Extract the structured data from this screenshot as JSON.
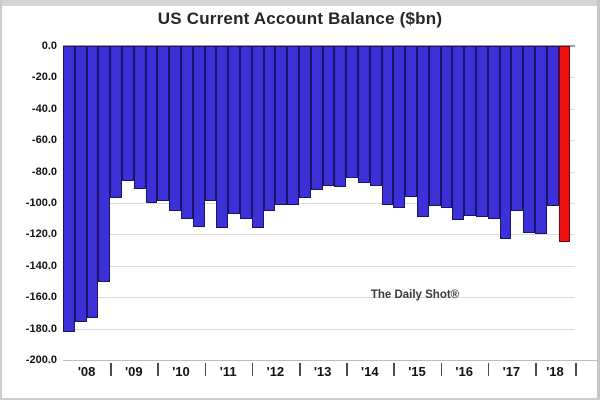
{
  "page": {
    "title": "US Current Account Balance ($bn)",
    "source_note": "The Daily Shot®"
  },
  "chart_data": {
    "type": "bar",
    "title": "US Current Account Balance ($bn)",
    "ylabel": "",
    "xlabel": "",
    "unit": "$bn",
    "ylim": [
      -200,
      0
    ],
    "grid": true,
    "legend": false,
    "yticks": [
      0,
      -20,
      -40,
      -60,
      -80,
      -100,
      -120,
      -140,
      -160,
      -180,
      -200
    ],
    "ytick_labels": [
      "0.0",
      "-20.0",
      "-40.0",
      "-60.0",
      "-80.0",
      "-100.0",
      "-120.0",
      "-140.0",
      "-160.0",
      "-180.0",
      "-200.0"
    ],
    "x_labels": [
      "'08",
      "'09",
      "'10",
      "'11",
      "'12",
      "'13",
      "'14",
      "'15",
      "'16",
      "'17",
      "'18"
    ],
    "bars_per_year": [
      4,
      4,
      4,
      4,
      4,
      4,
      4,
      4,
      4,
      4,
      3
    ],
    "categories": [
      "2008 Q1",
      "2008 Q2",
      "2008 Q3",
      "2008 Q4",
      "2009 Q1",
      "2009 Q2",
      "2009 Q3",
      "2009 Q4",
      "2010 Q1",
      "2010 Q2",
      "2010 Q3",
      "2010 Q4",
      "2011 Q1",
      "2011 Q2",
      "2011 Q3",
      "2011 Q4",
      "2012 Q1",
      "2012 Q2",
      "2012 Q3",
      "2012 Q4",
      "2013 Q1",
      "2013 Q2",
      "2013 Q3",
      "2013 Q4",
      "2014 Q1",
      "2014 Q2",
      "2014 Q3",
      "2014 Q4",
      "2015 Q1",
      "2015 Q2",
      "2015 Q3",
      "2015 Q4",
      "2016 Q1",
      "2016 Q2",
      "2016 Q3",
      "2016 Q4",
      "2017 Q1",
      "2017 Q2",
      "2017 Q3",
      "2017 Q4",
      "2018 Q1",
      "2018 Q2",
      "2018 Q3"
    ],
    "values": [
      -182,
      -176,
      -173,
      -150,
      -97,
      -86,
      -91,
      -100,
      -99,
      -105,
      -110,
      -115,
      -99,
      -116,
      -107,
      -110,
      -116,
      -105,
      -101,
      -101,
      -97,
      -92,
      -89,
      -90,
      -84,
      -87,
      -89,
      -101,
      -103,
      -96,
      -109,
      -102,
      -103,
      -111,
      -108,
      -109,
      -110,
      -123,
      -105,
      -119,
      -120,
      -102,
      -125
    ],
    "highlight_last": true,
    "colors": {
      "bar_fill": "#3C31D8",
      "bar_border": "#1A1464",
      "highlight_fill": "#EE1111",
      "highlight_border": "#7E0000",
      "gridline": "#DCDCDC",
      "zero_line": "#999999"
    },
    "annotations": [
      "The Daily Shot®"
    ]
  }
}
